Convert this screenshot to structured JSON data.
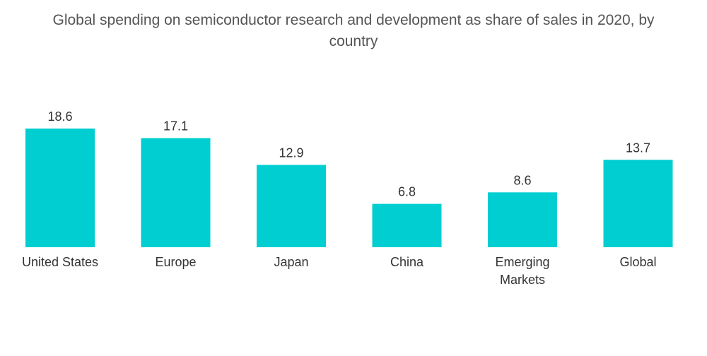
{
  "chart_data": {
    "type": "bar",
    "title_lines": [
      "Global spending on semiconductor research and development as share of sales in 2020, by",
      "country"
    ],
    "categories": [
      "United States",
      "Europe",
      "Japan",
      "China",
      "Emerging Markets",
      "Global"
    ],
    "category_label_lines": [
      [
        "United States"
      ],
      [
        "Europe"
      ],
      [
        "Japan"
      ],
      [
        "China"
      ],
      [
        "Emerging",
        "Markets"
      ],
      [
        "Global"
      ]
    ],
    "values": [
      18.6,
      17.1,
      12.9,
      6.8,
      8.6,
      13.7
    ],
    "value_labels": [
      "18.6",
      "17.1",
      "12.9",
      "6.8",
      "8.6",
      "13.7"
    ],
    "xlabel": "",
    "ylabel": "",
    "ylim": [
      0,
      18.6
    ],
    "grid": false,
    "legend": "none",
    "bar_color": "#00CED1"
  }
}
